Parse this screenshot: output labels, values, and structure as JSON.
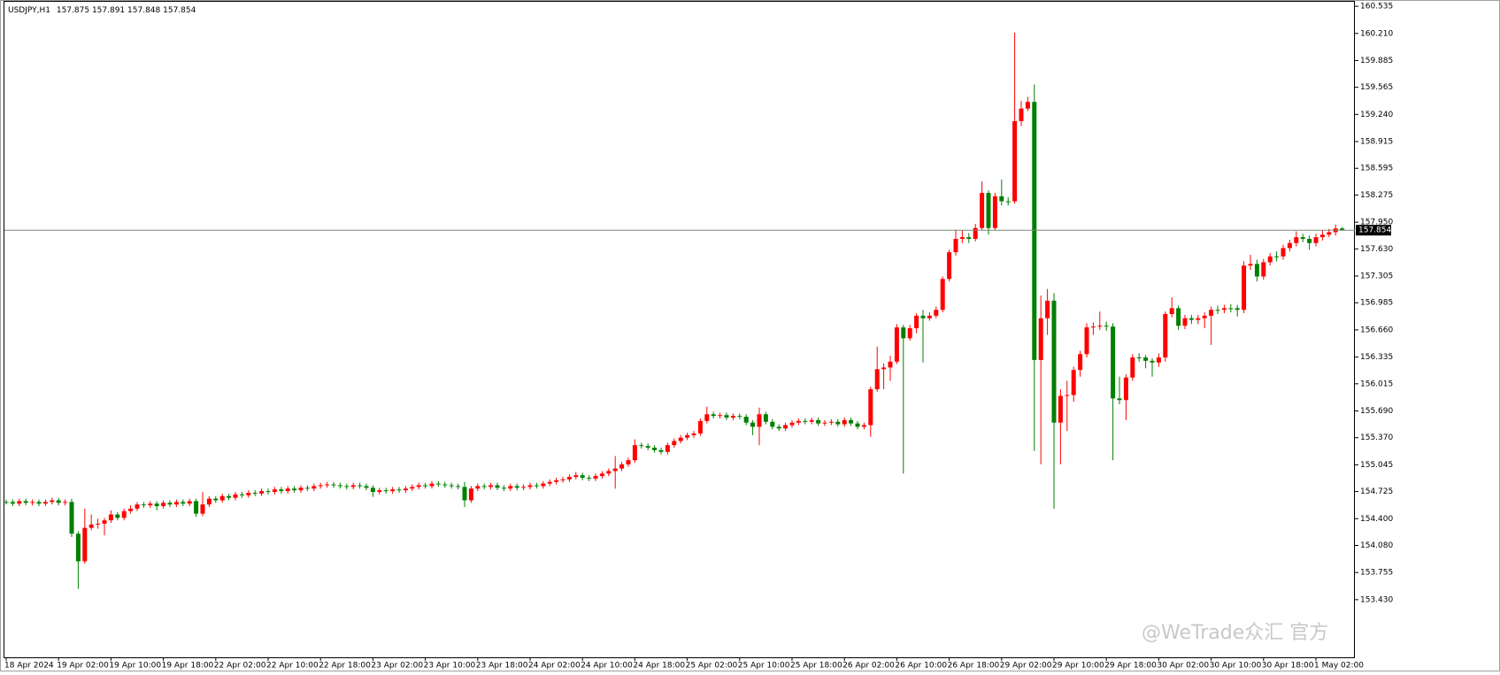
{
  "chart_data": {
    "type": "candlestick",
    "title": "USDJPY,H1",
    "watermark": "@WeTrade众汇 官方",
    "up_color": "#ff0000",
    "down_color": "#008000",
    "ylim": [
      152.74,
      160.61
    ],
    "yticks": [
      160.535,
      {
        "value": 160.21,
        "label": "160.210"
      },
      159.885,
      159.565,
      {
        "value": 159.24,
        "label": "159.240"
      },
      158.915,
      158.595,
      158.275,
      {
        "value": 157.95,
        "label": "157.950"
      },
      {
        "value": 157.63,
        "label": "157.630"
      },
      157.305,
      156.985,
      {
        "value": 156.66,
        "label": "156.660"
      },
      156.335,
      156.015,
      {
        "value": 155.69,
        "label": "155.690"
      },
      {
        "value": 155.37,
        "label": "155.370"
      },
      155.045,
      154.725,
      {
        "value": 154.4,
        "label": "154.400"
      },
      {
        "value": 154.08,
        "label": "154.080"
      },
      153.755,
      {
        "value": 153.43,
        "label": "153.430"
      }
    ],
    "categories": [
      "18 Apr 2024",
      null,
      null,
      null,
      null,
      null,
      null,
      null,
      "19 Apr 02:00",
      null,
      null,
      null,
      null,
      null,
      null,
      null,
      "19 Apr 10:00",
      null,
      null,
      null,
      null,
      null,
      null,
      null,
      "19 Apr 18:00",
      null,
      null,
      null,
      null,
      null,
      null,
      null,
      "22 Apr 02:00",
      null,
      null,
      null,
      null,
      null,
      null,
      null,
      "22 Apr 10:00",
      null,
      null,
      null,
      null,
      null,
      null,
      null,
      "22 Apr 18:00",
      null,
      null,
      null,
      null,
      null,
      null,
      null,
      "23 Apr 02:00",
      null,
      null,
      null,
      null,
      null,
      null,
      null,
      "23 Apr 10:00",
      null,
      null,
      null,
      null,
      null,
      null,
      null,
      "23 Apr 18:00",
      null,
      null,
      null,
      null,
      null,
      null,
      null,
      "24 Apr 02:00",
      null,
      null,
      null,
      null,
      null,
      null,
      null,
      "24 Apr 10:00",
      null,
      null,
      null,
      null,
      null,
      null,
      null,
      "24 Apr 18:00",
      null,
      null,
      null,
      null,
      null,
      null,
      null,
      "25 Apr 02:00",
      null,
      null,
      null,
      null,
      null,
      null,
      null,
      "25 Apr 10:00",
      null,
      null,
      null,
      null,
      null,
      null,
      null,
      "25 Apr 18:00",
      null,
      null,
      null,
      null,
      null,
      null,
      null,
      "26 Apr 02:00",
      null,
      null,
      null,
      null,
      null,
      null,
      null,
      "26 Apr 10:00",
      null,
      null,
      null,
      null,
      null,
      null,
      null,
      "26 Apr 18:00",
      null,
      null,
      null,
      null,
      null,
      null,
      null,
      "29 Apr 02:00",
      null,
      null,
      null,
      null,
      null,
      null,
      null,
      "29 Apr 10:00",
      null,
      null,
      null,
      null,
      null,
      null,
      null,
      "29 Apr 18:00",
      null,
      null,
      null,
      null,
      null,
      null,
      null,
      "30 Apr 02:00",
      null,
      null,
      null,
      null,
      null,
      null,
      null,
      "30 Apr 10:00",
      null,
      null,
      null,
      null,
      null,
      null,
      null,
      "30 Apr 18:00",
      null,
      null,
      null,
      null,
      null,
      null,
      null,
      "1 May 02:00",
      null,
      null,
      null,
      null
    ],
    "open": [
      154.6,
      154.6,
      154.58,
      154.61,
      154.59,
      154.6,
      154.58,
      154.6,
      154.62,
      154.59,
      154.6,
      154.22,
      153.89,
      154.29,
      154.33,
      154.34,
      154.38,
      154.45,
      154.41,
      154.49,
      154.52,
      154.57,
      154.56,
      154.58,
      154.55,
      154.59,
      154.57,
      154.6,
      154.58,
      154.61,
      154.46,
      154.57,
      154.64,
      154.62,
      154.67,
      154.65,
      154.69,
      154.68,
      154.71,
      154.7,
      154.73,
      154.72,
      154.75,
      154.73,
      154.76,
      154.74,
      154.77,
      154.76,
      154.79,
      154.8,
      154.81,
      154.8,
      154.79,
      154.78,
      154.8,
      154.79,
      154.77,
      154.72,
      154.74,
      154.73,
      154.75,
      154.74,
      154.76,
      154.78,
      154.8,
      154.79,
      154.82,
      154.81,
      154.8,
      154.79,
      154.78,
      154.62,
      154.76,
      154.79,
      154.78,
      154.8,
      154.77,
      154.76,
      154.79,
      154.77,
      154.78,
      154.8,
      154.79,
      154.82,
      154.84,
      154.86,
      154.87,
      154.9,
      154.92,
      154.89,
      154.88,
      154.91,
      154.94,
      154.97,
      155.0,
      155.05,
      155.1,
      155.28,
      155.27,
      155.25,
      155.22,
      155.2,
      155.28,
      155.33,
      155.37,
      155.4,
      155.42,
      155.57,
      155.65,
      155.63,
      155.64,
      155.61,
      155.63,
      155.62,
      155.55,
      155.5,
      155.65,
      155.56,
      155.5,
      155.48,
      155.52,
      155.55,
      155.57,
      155.56,
      155.58,
      155.54,
      155.55,
      155.56,
      155.53,
      155.58,
      155.54,
      155.5,
      155.52,
      155.95,
      156.19,
      156.21,
      156.28,
      156.69,
      156.56,
      156.68,
      156.83,
      156.8,
      156.83,
      156.9,
      157.27,
      157.59,
      157.75,
      157.77,
      157.75,
      157.88,
      158.3,
      157.88,
      158.26,
      158.2,
      158.2,
      159.16,
      159.31,
      159.39,
      156.3,
      156.8,
      157.01,
      155.55,
      155.87,
      155.88,
      156.18,
      156.37,
      156.69,
      156.7,
      156.71,
      156.7,
      155.84,
      155.82,
      156.09,
      156.33,
      156.33,
      156.29,
      156.27,
      156.33,
      156.85,
      156.92,
      156.71,
      156.8,
      156.78,
      156.8,
      156.83,
      156.9,
      156.9,
      156.92,
      156.92,
      156.9,
      157.43,
      157.45,
      157.3,
      157.47,
      157.54,
      157.54,
      157.64,
      157.7,
      157.77,
      157.75,
      157.7,
      157.77,
      157.8,
      157.83,
      157.875
    ],
    "high": [
      154.63,
      154.63,
      154.64,
      154.64,
      154.63,
      154.63,
      154.63,
      154.65,
      154.65,
      154.63,
      154.64,
      154.25,
      154.52,
      154.45,
      154.4,
      154.41,
      154.5,
      154.48,
      154.52,
      154.56,
      154.6,
      154.6,
      154.61,
      154.61,
      154.62,
      154.62,
      154.63,
      154.63,
      154.64,
      154.64,
      154.72,
      154.67,
      154.67,
      154.7,
      154.7,
      154.72,
      154.72,
      154.74,
      154.74,
      154.76,
      154.76,
      154.78,
      154.78,
      154.79,
      154.79,
      154.8,
      154.8,
      154.82,
      154.83,
      154.84,
      154.84,
      154.83,
      154.82,
      154.83,
      154.83,
      154.82,
      154.8,
      154.77,
      154.77,
      154.78,
      154.78,
      154.79,
      154.81,
      154.83,
      154.83,
      154.85,
      154.85,
      154.84,
      154.83,
      154.82,
      154.84,
      154.79,
      154.82,
      154.82,
      154.83,
      154.83,
      154.8,
      154.82,
      154.82,
      154.81,
      154.83,
      154.83,
      154.85,
      154.87,
      154.89,
      154.9,
      154.93,
      154.96,
      154.95,
      154.92,
      154.94,
      154.97,
      155.0,
      155.15,
      155.08,
      155.13,
      155.35,
      155.31,
      155.3,
      155.28,
      155.25,
      155.31,
      155.36,
      155.4,
      155.43,
      155.45,
      155.6,
      155.74,
      155.68,
      155.67,
      155.67,
      155.66,
      155.66,
      155.65,
      155.58,
      155.73,
      155.68,
      155.59,
      155.53,
      155.55,
      155.58,
      155.6,
      155.6,
      155.61,
      155.61,
      155.58,
      155.59,
      155.59,
      155.61,
      155.61,
      155.57,
      155.55,
      155.98,
      156.46,
      156.26,
      156.35,
      156.73,
      156.72,
      156.72,
      156.86,
      156.9,
      156.87,
      156.94,
      157.3,
      157.62,
      157.86,
      157.85,
      157.82,
      157.93,
      158.44,
      158.33,
      158.3,
      158.46,
      158.25,
      160.22,
      159.4,
      159.45,
      159.6,
      157.07,
      157.15,
      157.1,
      155.95,
      156.05,
      156.22,
      156.41,
      156.74,
      156.75,
      156.88,
      156.76,
      156.74,
      156.1,
      156.13,
      156.37,
      156.38,
      156.36,
      156.32,
      156.38,
      156.88,
      157.05,
      156.95,
      156.84,
      156.84,
      156.84,
      156.87,
      156.94,
      156.95,
      156.96,
      156.97,
      156.96,
      157.48,
      157.56,
      157.5,
      157.51,
      157.58,
      157.6,
      157.68,
      157.74,
      157.84,
      157.81,
      157.79,
      157.81,
      157.85,
      157.87,
      157.92,
      157.891
    ],
    "low": [
      154.57,
      154.55,
      154.55,
      154.56,
      154.56,
      154.55,
      154.55,
      154.57,
      154.56,
      154.56,
      154.18,
      153.56,
      153.86,
      154.26,
      154.28,
      154.2,
      154.35,
      154.38,
      154.38,
      154.46,
      154.49,
      154.53,
      154.53,
      154.5,
      154.52,
      154.54,
      154.54,
      154.55,
      154.55,
      154.42,
      154.43,
      154.54,
      154.59,
      154.59,
      154.62,
      154.62,
      154.65,
      154.65,
      154.67,
      154.67,
      154.69,
      154.69,
      154.7,
      154.7,
      154.71,
      154.71,
      154.73,
      154.73,
      154.76,
      154.77,
      154.77,
      154.76,
      154.75,
      154.75,
      154.76,
      154.74,
      154.66,
      154.69,
      154.7,
      154.7,
      154.71,
      154.71,
      154.73,
      154.75,
      154.76,
      154.76,
      154.78,
      154.77,
      154.76,
      154.75,
      154.54,
      154.59,
      154.73,
      154.75,
      154.75,
      154.74,
      154.73,
      154.73,
      154.74,
      154.74,
      154.75,
      154.76,
      154.76,
      154.79,
      154.81,
      154.83,
      154.84,
      154.87,
      154.86,
      154.85,
      154.85,
      154.88,
      154.91,
      154.76,
      154.97,
      155.02,
      155.07,
      155.24,
      155.22,
      155.19,
      155.17,
      155.17,
      155.25,
      155.3,
      155.34,
      155.37,
      155.39,
      155.54,
      155.6,
      155.6,
      155.58,
      155.58,
      155.59,
      155.52,
      155.4,
      155.28,
      155.53,
      155.47,
      155.45,
      155.45,
      155.49,
      155.52,
      155.53,
      155.53,
      155.51,
      155.51,
      155.52,
      155.5,
      155.5,
      155.51,
      155.47,
      155.47,
      155.38,
      155.92,
      155.95,
      156.05,
      156.25,
      154.94,
      156.53,
      156.62,
      156.27,
      156.77,
      156.8,
      156.87,
      157.24,
      157.55,
      157.7,
      157.7,
      157.72,
      157.85,
      157.8,
      157.85,
      158.15,
      158.15,
      158.17,
      159.1,
      159.28,
      155.21,
      155.05,
      156.6,
      154.52,
      155.05,
      155.45,
      155.8,
      156.1,
      156.33,
      156.6,
      156.66,
      156.65,
      155.1,
      155.77,
      155.58,
      156.05,
      156.28,
      156.2,
      156.1,
      156.22,
      156.28,
      156.81,
      156.66,
      156.67,
      156.73,
      156.73,
      156.68,
      156.48,
      156.85,
      156.86,
      156.87,
      156.82,
      156.86,
      157.38,
      157.24,
      157.26,
      157.43,
      157.48,
      157.5,
      157.6,
      157.66,
      157.71,
      157.62,
      157.66,
      157.73,
      157.77,
      157.79,
      157.848
    ],
    "close": [
      154.6,
      154.58,
      154.61,
      154.59,
      154.6,
      154.58,
      154.6,
      154.62,
      154.59,
      154.6,
      154.22,
      153.89,
      154.29,
      154.33,
      154.34,
      154.38,
      154.45,
      154.41,
      154.49,
      154.52,
      154.57,
      154.56,
      154.58,
      154.55,
      154.59,
      154.57,
      154.6,
      154.58,
      154.61,
      154.46,
      154.57,
      154.64,
      154.62,
      154.67,
      154.65,
      154.69,
      154.68,
      154.71,
      154.7,
      154.73,
      154.72,
      154.75,
      154.73,
      154.76,
      154.74,
      154.77,
      154.76,
      154.79,
      154.8,
      154.81,
      154.8,
      154.79,
      154.78,
      154.8,
      154.79,
      154.77,
      154.72,
      154.74,
      154.73,
      154.75,
      154.74,
      154.76,
      154.78,
      154.8,
      154.79,
      154.82,
      154.81,
      154.8,
      154.79,
      154.78,
      154.62,
      154.76,
      154.79,
      154.78,
      154.8,
      154.77,
      154.76,
      154.79,
      154.77,
      154.78,
      154.8,
      154.79,
      154.82,
      154.84,
      154.86,
      154.87,
      154.9,
      154.92,
      154.89,
      154.88,
      154.91,
      154.94,
      154.97,
      155.0,
      155.05,
      155.1,
      155.28,
      155.27,
      155.25,
      155.22,
      155.2,
      155.28,
      155.33,
      155.37,
      155.4,
      155.42,
      155.57,
      155.65,
      155.63,
      155.64,
      155.61,
      155.63,
      155.62,
      155.55,
      155.5,
      155.65,
      155.56,
      155.5,
      155.48,
      155.52,
      155.55,
      155.57,
      155.56,
      155.58,
      155.54,
      155.55,
      155.56,
      155.53,
      155.58,
      155.54,
      155.5,
      155.52,
      155.95,
      156.19,
      156.21,
      156.28,
      156.69,
      156.56,
      156.68,
      156.83,
      156.8,
      156.83,
      156.9,
      157.27,
      157.59,
      157.75,
      157.77,
      157.75,
      157.88,
      158.3,
      157.88,
      158.26,
      158.2,
      158.2,
      159.16,
      159.31,
      159.39,
      156.3,
      156.8,
      157.01,
      155.55,
      155.87,
      155.88,
      156.18,
      156.37,
      156.69,
      156.7,
      156.71,
      156.7,
      155.84,
      155.82,
      156.09,
      156.33,
      156.33,
      156.29,
      156.27,
      156.33,
      156.85,
      156.92,
      156.71,
      156.8,
      156.78,
      156.8,
      156.83,
      156.9,
      156.9,
      156.92,
      156.92,
      156.9,
      157.43,
      157.45,
      157.3,
      157.47,
      157.54,
      157.54,
      157.64,
      157.7,
      157.77,
      157.75,
      157.7,
      157.77,
      157.8,
      157.83,
      157.875,
      157.854
    ]
  }
}
